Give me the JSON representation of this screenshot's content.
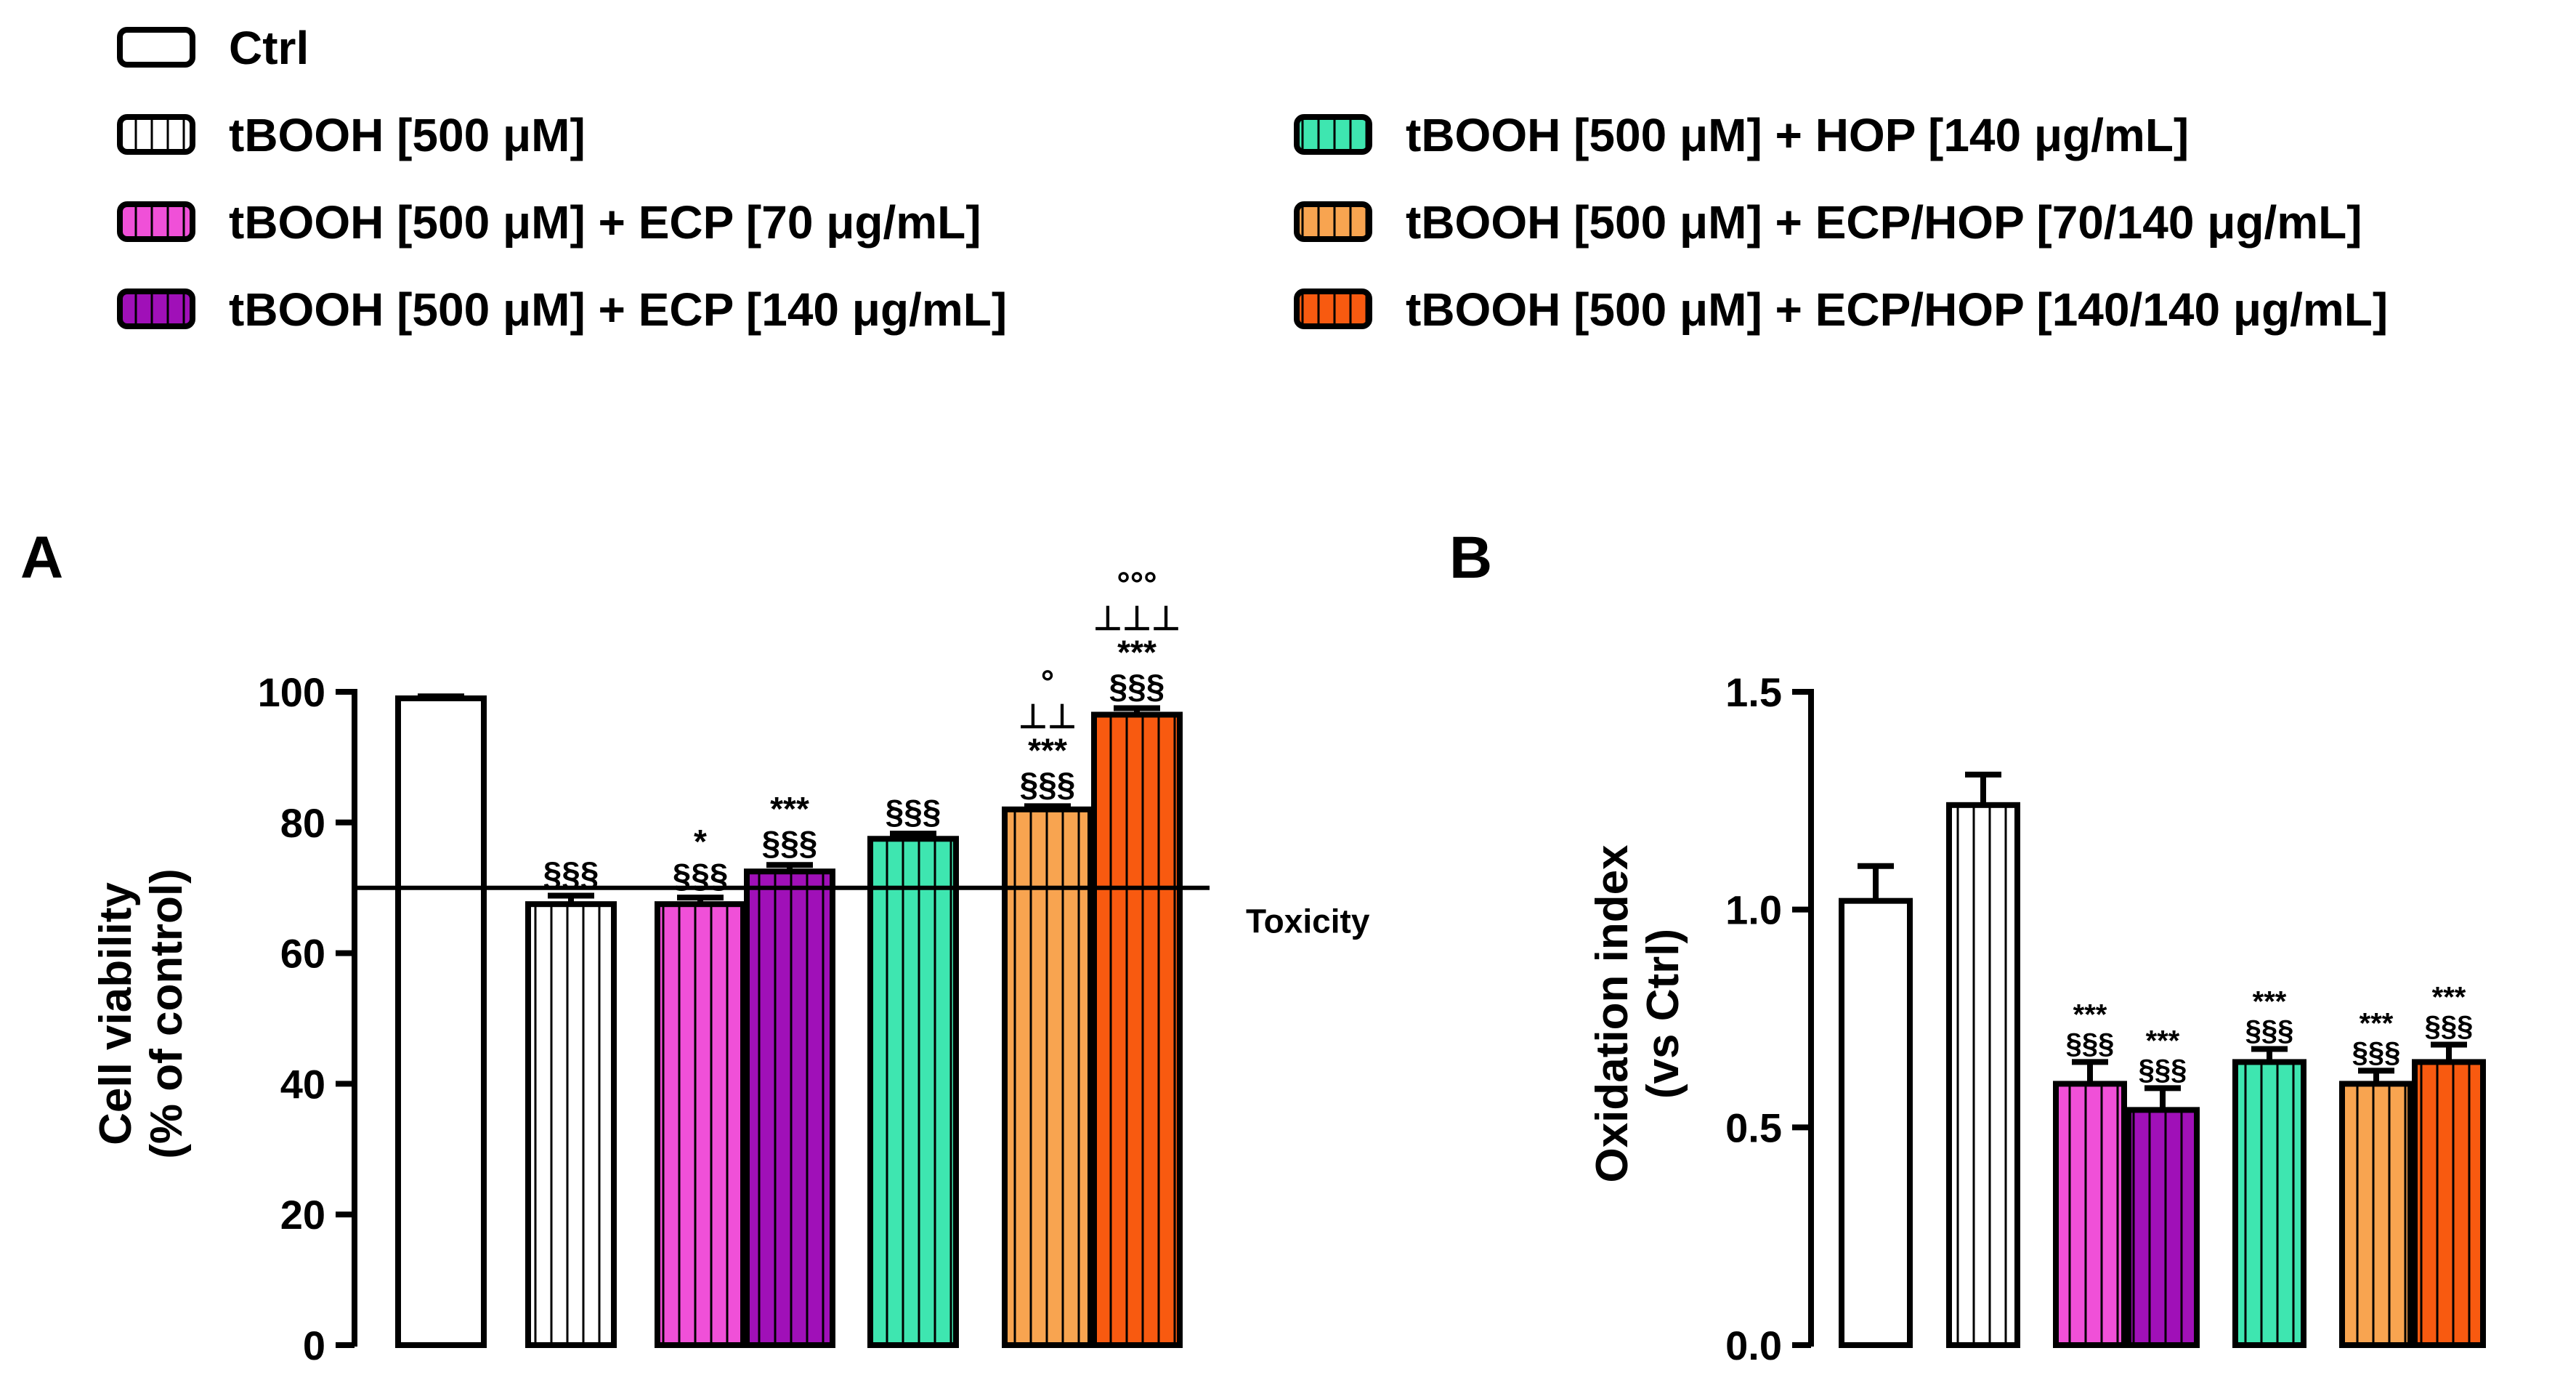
{
  "legend": [
    {
      "label": "Ctrl",
      "fill": "#ffffff",
      "striped": false
    },
    {
      "label": "tBOOH [500 μM]",
      "fill": "#ffffff",
      "striped": true
    },
    {
      "label": "tBOOH [500 μM] + ECP [70 μg/mL]",
      "fill": "#f050d8",
      "striped": true
    },
    {
      "label": "tBOOH [500 μM] + ECP [140 μg/mL]",
      "fill": "#a010b8",
      "striped": true
    },
    {
      "label": "tBOOH [500 μM] + HOP [140 μg/mL]",
      "fill": "#3ee6b0",
      "striped": true
    },
    {
      "label": "tBOOH [500 μM] + ECP/HOP [70/140 μg/mL]",
      "fill": "#f8a450",
      "striped": true
    },
    {
      "label": "tBOOH [500 μM] + ECP/HOP [140/140 μg/mL]",
      "fill": "#f85a10",
      "striped": true
    }
  ],
  "chart_data": [
    {
      "type": "bar",
      "panel": "A",
      "ylabel_line1": "Cell viability",
      "ylabel_line2": "(% of control)",
      "ylim": [
        0,
        100
      ],
      "yticks": [
        "0",
        "20",
        "40",
        "60",
        "80",
        "100"
      ],
      "categories": [
        "Ctrl",
        "tBOOH [500 μM]",
        "tBOOH [500 μM] + ECP [70 μg/mL]",
        "tBOOH [500 μM] + ECP [140 μg/mL]",
        "tBOOH [500 μM] + HOP [140 μg/mL]",
        "tBOOH [500 μM] + ECP/HOP [70/140 μg/mL]",
        "tBOOH [500 μM] + ECP/HOP [140/140 μg/mL]"
      ],
      "values": [
        99,
        67.5,
        67.5,
        72.5,
        77.5,
        82,
        96.5
      ],
      "errors": [
        0.3,
        1.3,
        1.0,
        1.0,
        0.8,
        0.5,
        1.0
      ],
      "annotations": [
        [],
        [
          "§§§"
        ],
        [
          "*",
          "§§§"
        ],
        [
          "***",
          "§§§"
        ],
        [
          "§§§"
        ],
        [
          "°",
          "⊥⊥",
          "***",
          "§§§"
        ],
        [
          "°°°",
          "⊥⊥⊥",
          "***",
          "§§§"
        ]
      ],
      "reference_line": {
        "value": 70,
        "label": "Toxicity"
      }
    },
    {
      "type": "bar",
      "panel": "B",
      "ylabel_line1": "Oxidation index",
      "ylabel_line2": "(vs Ctrl)",
      "ylim": [
        0,
        1.5
      ],
      "yticks": [
        "0.0",
        "0.5",
        "1.0",
        "1.5"
      ],
      "categories": [
        "Ctrl",
        "tBOOH [500 μM]",
        "tBOOH [500 μM] + ECP [70 μg/mL]",
        "tBOOH [500 μM] + ECP [140 μg/mL]",
        "tBOOH [500 μM] + HOP [140 μg/mL]",
        "tBOOH [500 μM] + ECP/HOP [70/140 μg/mL]",
        "tBOOH [500 μM] + ECP/HOP [140/140 μg/mL]"
      ],
      "values": [
        1.02,
        1.24,
        0.6,
        0.54,
        0.65,
        0.6,
        0.65
      ],
      "errors": [
        0.08,
        0.07,
        0.05,
        0.05,
        0.03,
        0.03,
        0.04
      ],
      "annotations": [
        [],
        [],
        [
          "***",
          "§§§"
        ],
        [
          "***",
          "§§§"
        ],
        [
          "***",
          "§§§"
        ],
        [
          "***",
          "§§§"
        ],
        [
          "***",
          "§§§"
        ]
      ]
    }
  ]
}
